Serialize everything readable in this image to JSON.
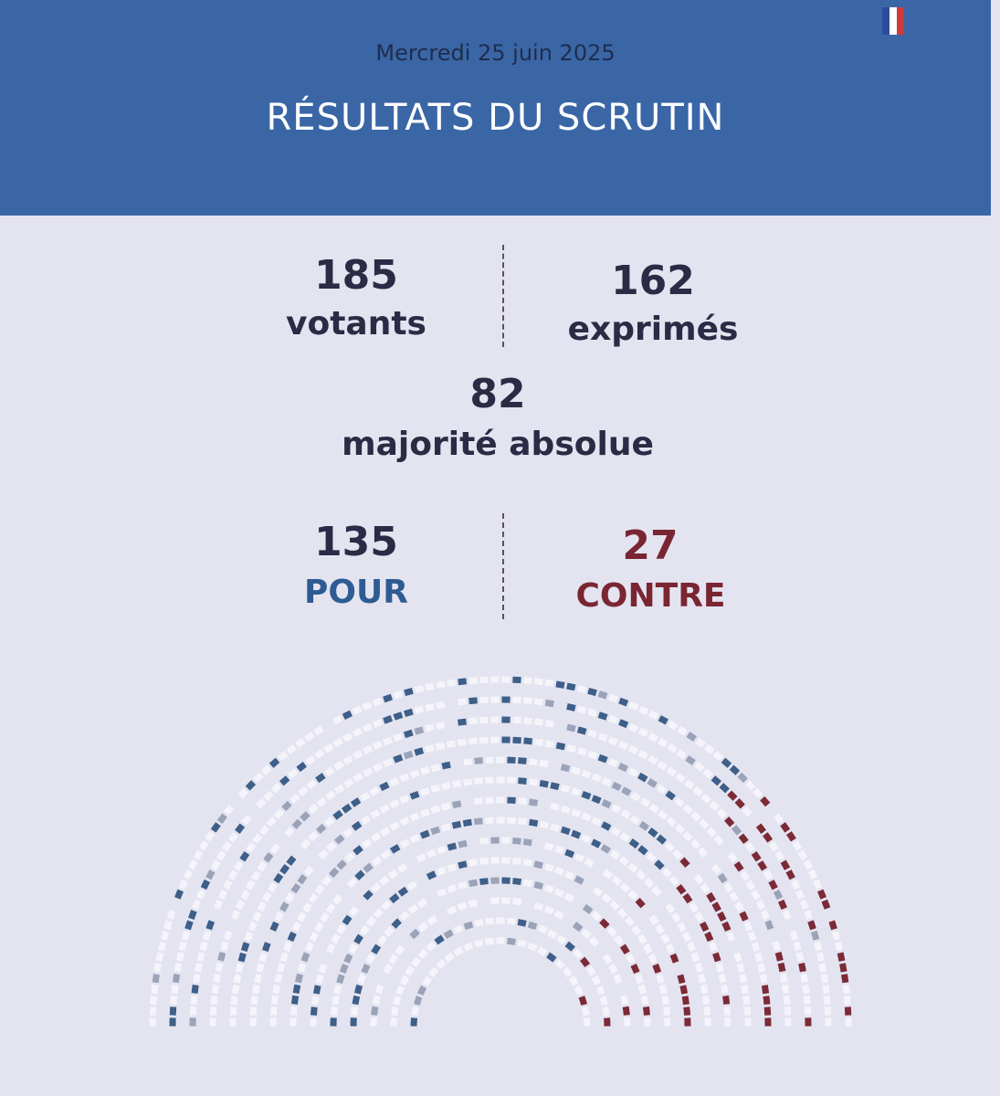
{
  "header": {
    "date": "Mercredi 25 juin 2025",
    "title": "RÉSULTATS DU SCRUTIN"
  },
  "stats": {
    "votants": {
      "number": 185,
      "label": "votants"
    },
    "exprimes": {
      "number": 162,
      "label": "exprimés"
    },
    "majorite": {
      "number": 82,
      "label": "majorité absolue"
    },
    "pour": {
      "number": 135,
      "label": "POUR"
    },
    "contre": {
      "number": 27,
      "label": "CONTRE"
    }
  }
}
